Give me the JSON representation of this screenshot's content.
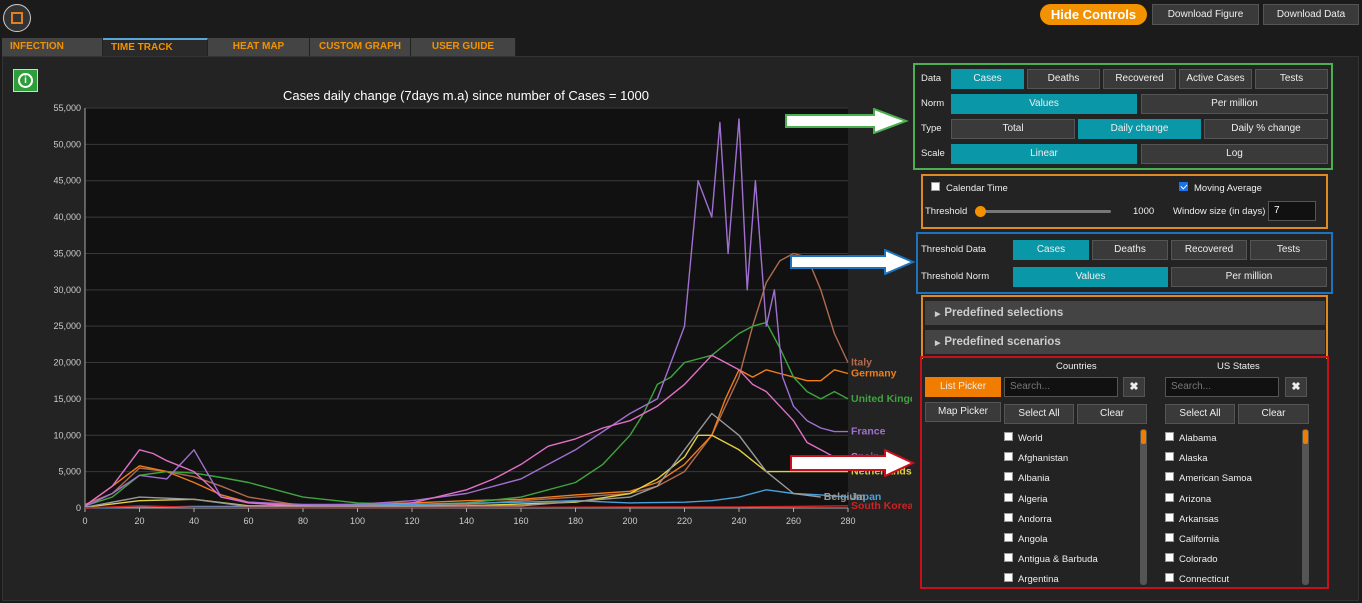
{
  "header": {
    "hide_controls": "Hide Controls",
    "download_figure": "Download Figure",
    "download_data": "Download Data"
  },
  "tabs": [
    {
      "label": "INFECTION MAPS",
      "active": false
    },
    {
      "label": "TIME TRACK",
      "active": true
    },
    {
      "label": "HEAT MAP",
      "active": false
    },
    {
      "label": "CUSTOM GRAPH",
      "active": false
    },
    {
      "label": "USER GUIDE",
      "active": false
    }
  ],
  "controls": {
    "data_label": "Data",
    "data_options": [
      "Cases",
      "Deaths",
      "Recovered",
      "Active Cases",
      "Tests"
    ],
    "norm_label": "Norm",
    "norm_options": [
      "Values",
      "Per million"
    ],
    "type_label": "Type",
    "type_options": [
      "Total",
      "Daily change",
      "Daily % change"
    ],
    "scale_label": "Scale",
    "scale_options": [
      "Linear",
      "Log"
    ],
    "calendar_time": "Calendar Time",
    "moving_average": "Moving Average",
    "threshold_label": "Threshold",
    "threshold_value": "1000",
    "window_label": "Window size (in days)",
    "window_value": "7",
    "threshold_data_label": "Threshold Data",
    "threshold_data_options": [
      "Cases",
      "Deaths",
      "Recovered",
      "Tests"
    ],
    "threshold_norm_label": "Threshold Norm",
    "threshold_norm_options": [
      "Values",
      "Per million"
    ],
    "predefined_selections": "Predefined selections",
    "predefined_scenarios": "Predefined scenarios"
  },
  "picker": {
    "countries_title": "Countries",
    "us_states_title": "US States",
    "list_picker": "List Picker",
    "map_picker": "Map Picker",
    "search_placeholder": "Search...",
    "select_all": "Select All",
    "clear": "Clear",
    "countries": [
      "World",
      "Afghanistan",
      "Albania",
      "Algeria",
      "Andorra",
      "Angola",
      "Antigua & Barbuda",
      "Argentina"
    ],
    "states": [
      "Alabama",
      "Alaska",
      "American Samoa",
      "Arizona",
      "Arkansas",
      "California",
      "Colorado",
      "Connecticut"
    ]
  },
  "colors": {
    "accent": "#f39200",
    "teal": "#0a98a8",
    "green": "#4caf50",
    "blue": "#1e73be",
    "red": "#c8101c"
  },
  "chart_data": {
    "type": "line",
    "title": "Cases daily change (7days m.a) since number of Cases = 1000",
    "xlim": [
      0,
      280
    ],
    "ylim": [
      0,
      55000
    ],
    "xticks": [
      0,
      20,
      40,
      60,
      80,
      100,
      120,
      140,
      160,
      180,
      200,
      220,
      240,
      260,
      280
    ],
    "yticks": [
      0,
      5000,
      10000,
      15000,
      20000,
      25000,
      30000,
      35000,
      40000,
      45000,
      50000,
      55000
    ],
    "ytick_labels": [
      "0",
      "5,000",
      "10,000",
      "15,000",
      "20,000",
      "25,000",
      "30,000",
      "35,000",
      "40,000",
      "45,000",
      "50,000",
      "55,000"
    ],
    "grid": true,
    "series": [
      {
        "name": "Italy",
        "color": "#b06b4e",
        "x": [
          0,
          10,
          20,
          30,
          40,
          50,
          60,
          80,
          100,
          120,
          140,
          160,
          180,
          200,
          210,
          220,
          230,
          240,
          245,
          250,
          255,
          260,
          265,
          270,
          275,
          280
        ],
        "y": [
          500,
          2000,
          5500,
          5000,
          4300,
          3000,
          1500,
          300,
          200,
          300,
          500,
          1000,
          1500,
          2000,
          3000,
          5000,
          10000,
          18000,
          25000,
          31000,
          34000,
          35000,
          34500,
          30000,
          24000,
          20000
        ]
      },
      {
        "name": "Germany",
        "color": "#f07d1a",
        "x": [
          0,
          10,
          20,
          30,
          40,
          50,
          60,
          80,
          100,
          120,
          140,
          160,
          180,
          200,
          210,
          220,
          230,
          235,
          240,
          245,
          250,
          255,
          260,
          265,
          270,
          275,
          280
        ],
        "y": [
          300,
          3000,
          5800,
          5000,
          3500,
          1800,
          800,
          400,
          500,
          700,
          1000,
          1200,
          1800,
          2300,
          3500,
          6000,
          10000,
          15000,
          19000,
          18000,
          19000,
          18500,
          18000,
          17500,
          17500,
          19000,
          18500
        ]
      },
      {
        "name": "United Kingdom",
        "color": "#3fa43f",
        "x": [
          0,
          10,
          20,
          30,
          40,
          50,
          60,
          80,
          100,
          120,
          140,
          160,
          180,
          190,
          200,
          205,
          210,
          215,
          220,
          230,
          240,
          245,
          250,
          255,
          260,
          265,
          270,
          275,
          280
        ],
        "y": [
          300,
          1500,
          4500,
          5000,
          4800,
          4200,
          3500,
          1500,
          700,
          500,
          700,
          1500,
          3500,
          6000,
          10000,
          13000,
          17000,
          18000,
          20000,
          21000,
          24000,
          25000,
          25500,
          22000,
          18000,
          16000,
          15000,
          16000,
          15000
        ]
      },
      {
        "name": "France",
        "color": "#a070d0",
        "x": [
          0,
          10,
          20,
          30,
          35,
          40,
          50,
          60,
          80,
          100,
          120,
          140,
          160,
          180,
          200,
          210,
          220,
          225,
          230,
          233,
          236,
          240,
          243,
          246,
          250,
          253,
          256,
          260,
          265,
          270,
          275,
          280
        ],
        "y": [
          200,
          2000,
          4500,
          4000,
          6000,
          8000,
          1500,
          800,
          500,
          500,
          1000,
          2000,
          4000,
          8000,
          13000,
          15000,
          25000,
          45000,
          40000,
          53000,
          35000,
          53500,
          30000,
          45000,
          25000,
          30000,
          18000,
          14000,
          12000,
          11000,
          10500,
          10500
        ]
      },
      {
        "name": "Spain",
        "color": "#e070c8",
        "x": [
          0,
          10,
          20,
          25,
          30,
          40,
          50,
          60,
          80,
          100,
          120,
          140,
          150,
          160,
          170,
          180,
          190,
          200,
          210,
          220,
          230,
          235,
          240,
          245,
          250,
          255,
          260,
          265,
          270,
          275,
          280
        ],
        "y": [
          300,
          3000,
          8000,
          7500,
          6500,
          5000,
          1500,
          700,
          200,
          200,
          700,
          2500,
          4000,
          6000,
          8500,
          9500,
          11000,
          12000,
          14000,
          17000,
          21000,
          20000,
          19000,
          17000,
          16000,
          14000,
          12000,
          9000,
          8000,
          7000,
          7000
        ]
      },
      {
        "name": "Netherlands",
        "color": "#e0d040",
        "x": [
          0,
          20,
          40,
          60,
          100,
          140,
          180,
          200,
          210,
          220,
          225,
          230,
          240,
          245,
          250,
          260,
          270,
          280
        ],
        "y": [
          100,
          1000,
          1200,
          300,
          200,
          300,
          800,
          2000,
          4000,
          7000,
          10000,
          10000,
          8000,
          6500,
          5000,
          5000,
          5000,
          5000
        ]
      },
      {
        "name": "Japan",
        "color": "#4aa0d8",
        "x": [
          0,
          40,
          80,
          120,
          160,
          180,
          200,
          220,
          230,
          240,
          250,
          260,
          270,
          280
        ],
        "y": [
          0,
          200,
          200,
          500,
          800,
          1000,
          700,
          800,
          1000,
          1500,
          2500,
          2000,
          1800,
          1500
        ]
      },
      {
        "name": "Belgium",
        "color": "#999999",
        "x": [
          0,
          20,
          40,
          60,
          100,
          160,
          200,
          210,
          220,
          230,
          240,
          250,
          260,
          270
        ],
        "y": [
          100,
          1500,
          1200,
          200,
          200,
          300,
          1500,
          3000,
          8000,
          13000,
          10000,
          5000,
          2000,
          1500
        ]
      },
      {
        "name": "South Korea",
        "color": "#d42020",
        "x": [
          0,
          20,
          40,
          80,
          120,
          160,
          200,
          240,
          260,
          280
        ],
        "y": [
          0,
          300,
          100,
          50,
          50,
          100,
          150,
          150,
          200,
          300
        ]
      }
    ]
  }
}
